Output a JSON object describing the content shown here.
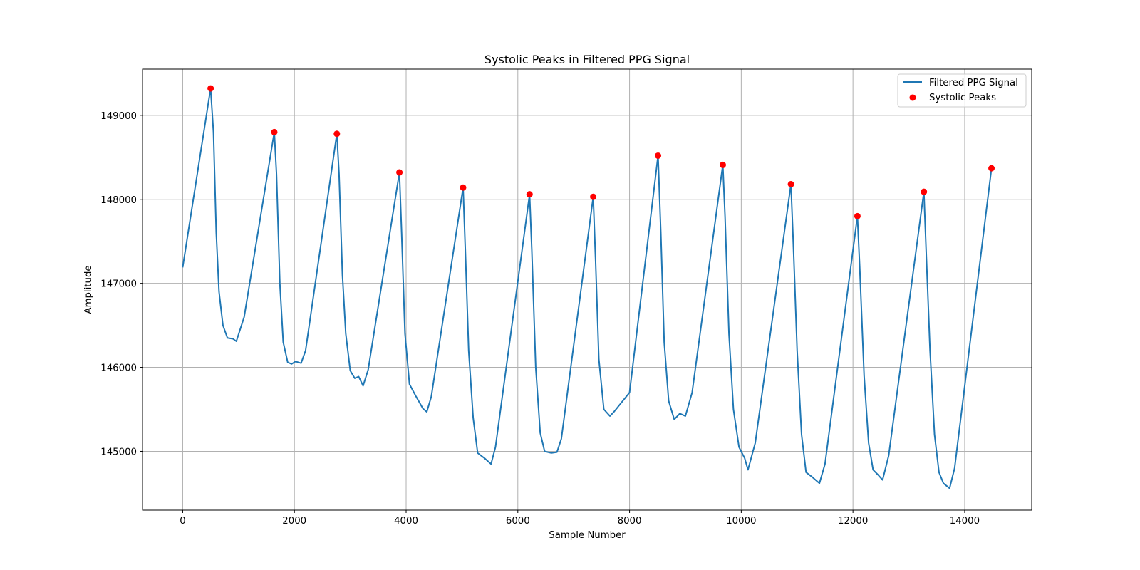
{
  "chart_data": {
    "type": "line",
    "title": "Systolic Peaks in Filtered PPG Signal",
    "xlabel": "Sample Number",
    "ylabel": "Amplitude",
    "xlim": [
      -720,
      15200
    ],
    "ylim": [
      144300,
      149550
    ],
    "x_ticks": [
      0,
      2000,
      4000,
      6000,
      8000,
      10000,
      12000,
      14000
    ],
    "x_tick_labels": [
      "0",
      "2000",
      "4000",
      "6000",
      "8000",
      "10000",
      "12000",
      "14000"
    ],
    "y_ticks": [
      145000,
      146000,
      147000,
      148000,
      149000
    ],
    "y_tick_labels": [
      "145000",
      "146000",
      "147000",
      "148000",
      "149000"
    ],
    "grid": true,
    "legend_position": "upper right",
    "series": [
      {
        "name": "Filtered PPG Signal",
        "kind": "line",
        "color": "#1f77b4",
        "points": [
          [
            0,
            147190
          ],
          [
            500,
            149320
          ],
          [
            550,
            148800
          ],
          [
            600,
            147600
          ],
          [
            650,
            146900
          ],
          [
            720,
            146500
          ],
          [
            800,
            146350
          ],
          [
            900,
            146340
          ],
          [
            960,
            146310
          ],
          [
            1100,
            146600
          ],
          [
            1640,
            148800
          ],
          [
            1680,
            148300
          ],
          [
            1740,
            147000
          ],
          [
            1800,
            146300
          ],
          [
            1880,
            146060
          ],
          [
            1950,
            146040
          ],
          [
            2020,
            146070
          ],
          [
            2120,
            146050
          ],
          [
            2200,
            146200
          ],
          [
            2760,
            148780
          ],
          [
            2800,
            148300
          ],
          [
            2860,
            147100
          ],
          [
            2920,
            146400
          ],
          [
            3000,
            145960
          ],
          [
            3080,
            145870
          ],
          [
            3150,
            145890
          ],
          [
            3230,
            145780
          ],
          [
            3320,
            145970
          ],
          [
            3880,
            148320
          ],
          [
            3920,
            147600
          ],
          [
            3980,
            146400
          ],
          [
            4060,
            145800
          ],
          [
            4180,
            145650
          ],
          [
            4300,
            145510
          ],
          [
            4370,
            145470
          ],
          [
            4450,
            145650
          ],
          [
            5020,
            148140
          ],
          [
            5060,
            147400
          ],
          [
            5120,
            146200
          ],
          [
            5200,
            145400
          ],
          [
            5280,
            144980
          ],
          [
            5400,
            144920
          ],
          [
            5520,
            144850
          ],
          [
            5600,
            145050
          ],
          [
            6210,
            148060
          ],
          [
            6250,
            147400
          ],
          [
            6320,
            146000
          ],
          [
            6400,
            145220
          ],
          [
            6480,
            145000
          ],
          [
            6600,
            144980
          ],
          [
            6700,
            144990
          ],
          [
            6780,
            145150
          ],
          [
            7350,
            148030
          ],
          [
            7390,
            147300
          ],
          [
            7450,
            146100
          ],
          [
            7540,
            145500
          ],
          [
            7650,
            145420
          ],
          [
            7720,
            145470
          ],
          [
            8000,
            145700
          ],
          [
            8510,
            148520
          ],
          [
            8560,
            147600
          ],
          [
            8620,
            146300
          ],
          [
            8700,
            145600
          ],
          [
            8800,
            145380
          ],
          [
            8900,
            145450
          ],
          [
            9000,
            145420
          ],
          [
            9120,
            145700
          ],
          [
            9670,
            148410
          ],
          [
            9710,
            147800
          ],
          [
            9780,
            146400
          ],
          [
            9860,
            145500
          ],
          [
            9960,
            145050
          ],
          [
            10060,
            144920
          ],
          [
            10120,
            144780
          ],
          [
            10250,
            145100
          ],
          [
            10890,
            148180
          ],
          [
            10930,
            147500
          ],
          [
            11000,
            146200
          ],
          [
            11080,
            145200
          ],
          [
            11160,
            144750
          ],
          [
            11260,
            144700
          ],
          [
            11400,
            144620
          ],
          [
            11500,
            144850
          ],
          [
            12080,
            147800
          ],
          [
            12120,
            147200
          ],
          [
            12200,
            145900
          ],
          [
            12280,
            145100
          ],
          [
            12360,
            144780
          ],
          [
            12450,
            144720
          ],
          [
            12530,
            144660
          ],
          [
            12640,
            144950
          ],
          [
            13270,
            148090
          ],
          [
            13310,
            147400
          ],
          [
            13380,
            146200
          ],
          [
            13460,
            145200
          ],
          [
            13540,
            144750
          ],
          [
            13620,
            144620
          ],
          [
            13730,
            144560
          ],
          [
            13820,
            144800
          ],
          [
            14480,
            148370
          ]
        ]
      },
      {
        "name": "Systolic Peaks",
        "kind": "scatter",
        "color": "#ff0000",
        "points": [
          [
            500,
            149320
          ],
          [
            1640,
            148800
          ],
          [
            2760,
            148780
          ],
          [
            3880,
            148320
          ],
          [
            5020,
            148140
          ],
          [
            6210,
            148060
          ],
          [
            7350,
            148030
          ],
          [
            8510,
            148520
          ],
          [
            9670,
            148410
          ],
          [
            10890,
            148180
          ],
          [
            12080,
            147800
          ],
          [
            13270,
            148090
          ],
          [
            14480,
            148370
          ]
        ]
      }
    ]
  }
}
